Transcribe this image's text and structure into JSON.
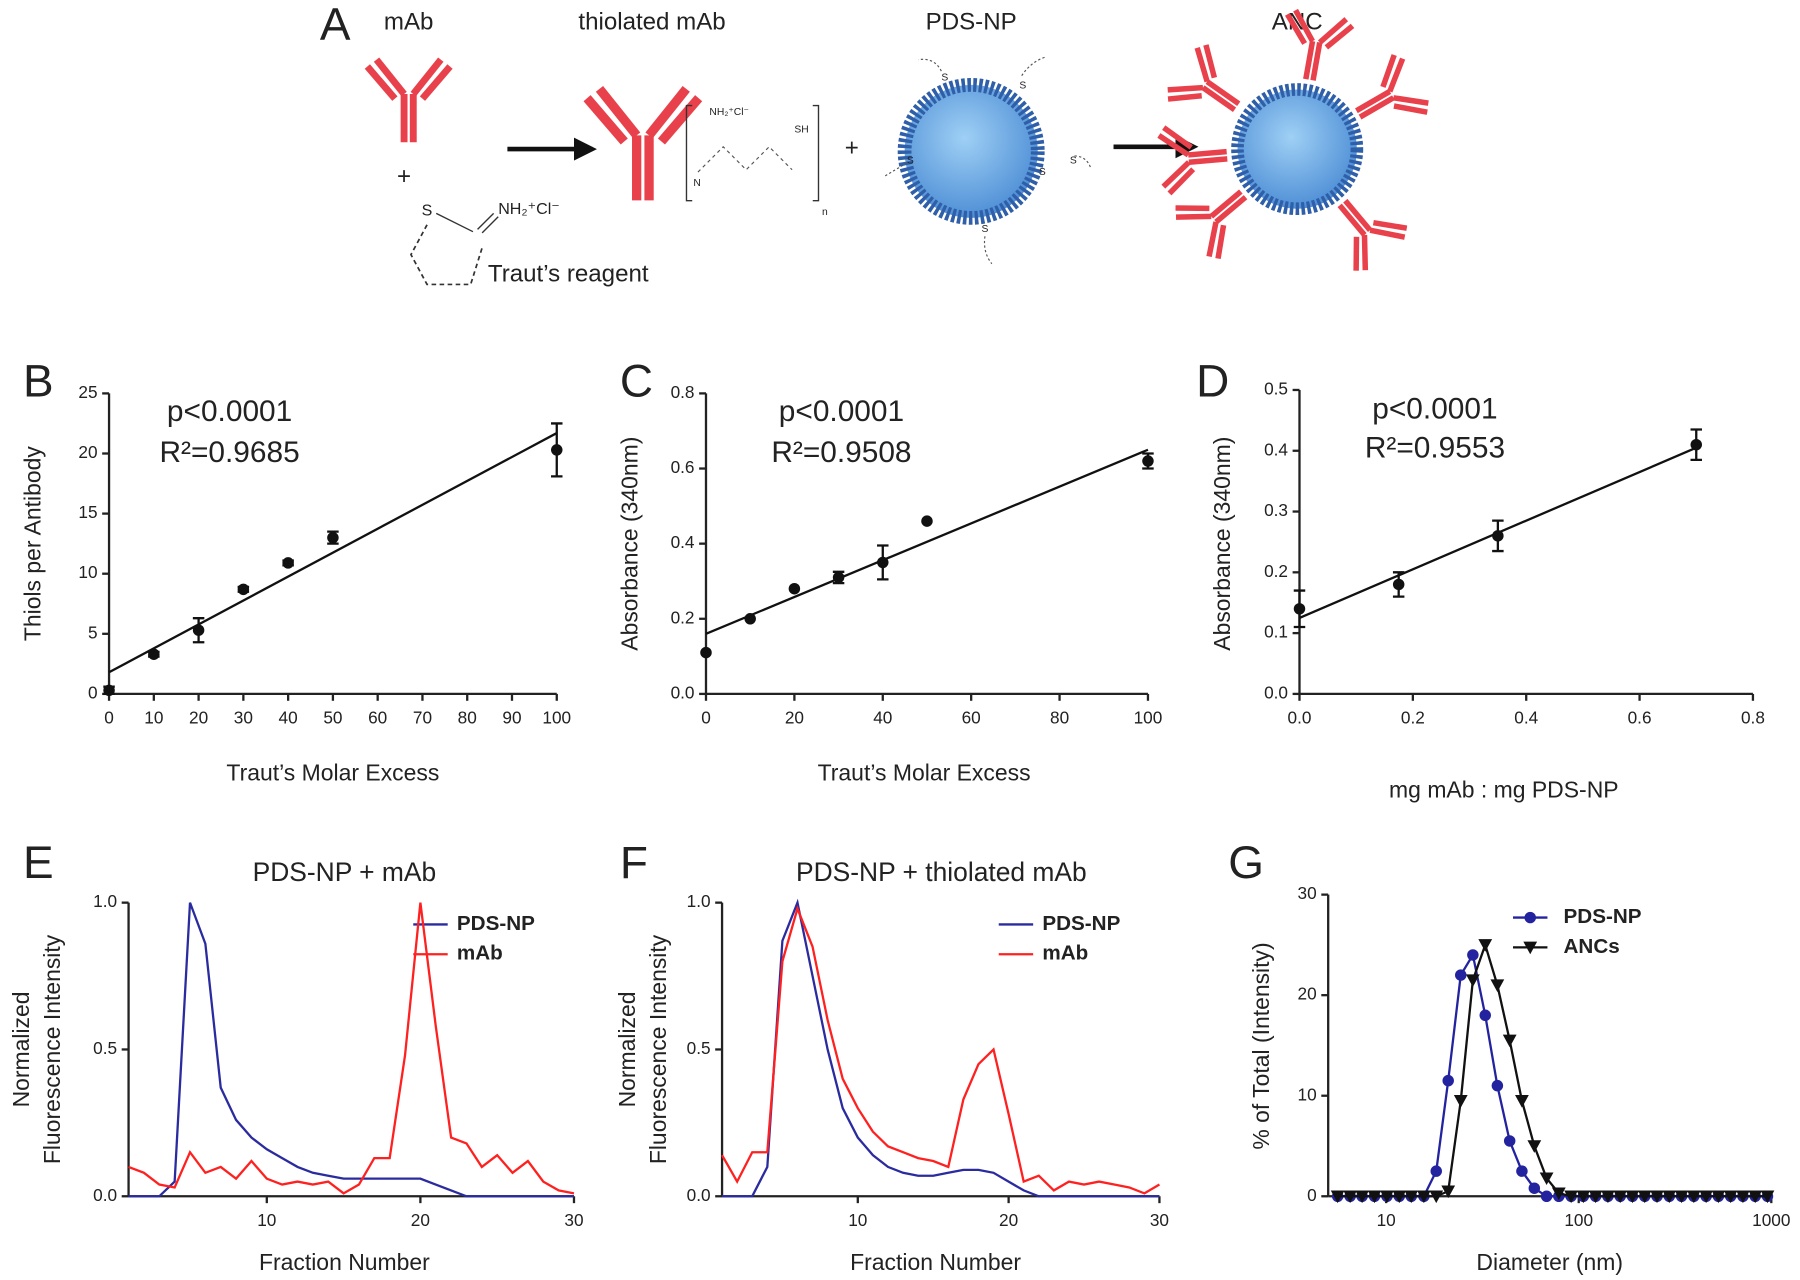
{
  "scheme": {
    "label": "A",
    "mab": "mAb",
    "thiolated_mab": "thiolated mAb",
    "pds_np": "PDS-NP",
    "anc": "ANC",
    "plus": "+",
    "reagent": "Traut’s reagent",
    "sulfur": "S",
    "iminium": "NH₂⁺Cl⁻",
    "thiol": "SH",
    "repeat": "n",
    "amine": "N"
  },
  "chart_data": [
    {
      "type": "scatter",
      "label": "B",
      "annotations": [
        "p<0.0001",
        "R²=0.9685"
      ],
      "xlabel": "Traut’s Molar Excess",
      "ylabel": "Thiols per Antibody",
      "x": [
        0,
        10,
        20,
        30,
        40,
        50,
        100
      ],
      "values": [
        0.3,
        3.3,
        5.3,
        8.7,
        10.9,
        13.0,
        20.3
      ],
      "errors": [
        0.3,
        0.2,
        1.0,
        0.2,
        0.2,
        0.5,
        2.2
      ],
      "fit": {
        "x": [
          0,
          100
        ],
        "values": [
          1.8,
          21.7
        ]
      },
      "color": "#111111",
      "xlim": [
        0,
        100
      ],
      "xticks": [
        0,
        10,
        20,
        30,
        40,
        50,
        60,
        70,
        80,
        90,
        100
      ],
      "ylim": [
        0,
        25
      ],
      "yticks": [
        0,
        5,
        10,
        15,
        20,
        25
      ]
    },
    {
      "type": "scatter",
      "label": "C",
      "annotations": [
        "p<0.0001",
        "R²=0.9508"
      ],
      "xlabel": "Traut’s Molar Excess",
      "ylabel": "Absorbance (340nm)",
      "x": [
        0,
        10,
        20,
        30,
        40,
        50,
        100
      ],
      "values": [
        0.11,
        0.2,
        0.28,
        0.31,
        0.35,
        0.46,
        0.62
      ],
      "errors": [
        0,
        0,
        0,
        0.015,
        0.045,
        0,
        0.02
      ],
      "fit": {
        "x": [
          0,
          100
        ],
        "values": [
          0.16,
          0.65
        ]
      },
      "color": "#111111",
      "xlim": [
        0,
        100
      ],
      "xticks": [
        0,
        20,
        40,
        60,
        80,
        100
      ],
      "ylim": [
        0,
        0.8
      ],
      "yticks": [
        {
          "value": 0,
          "label": "0.0"
        },
        0.2,
        0.4,
        0.6,
        0.8
      ]
    },
    {
      "type": "scatter",
      "label": "D",
      "annotations": [
        "p<0.0001",
        "R²=0.9553"
      ],
      "xlabel": "mg mAb : mg PDS-NP",
      "ylabel": "Absorbance (340nm)",
      "x": [
        0,
        0.175,
        0.35,
        0.7
      ],
      "values": [
        0.14,
        0.18,
        0.26,
        0.41
      ],
      "errors": [
        0.03,
        0.02,
        0.025,
        0.025
      ],
      "fit": {
        "x": [
          0,
          0.7
        ],
        "values": [
          0.125,
          0.405
        ]
      },
      "color": "#111111",
      "xlim": [
        0,
        0.8
      ],
      "xticks": [
        {
          "value": 0,
          "label": "0.0"
        },
        0.2,
        0.4,
        0.6,
        0.8
      ],
      "ylim": [
        0,
        0.5
      ],
      "yticks": [
        {
          "value": 0,
          "label": "0.0"
        },
        0.1,
        0.2,
        0.3,
        0.4,
        0.5
      ]
    },
    {
      "type": "line",
      "label": "E",
      "title": "PDS-NP + mAb",
      "xlabel": "Fraction Number",
      "ylabel": [
        "Normalized",
        "Fluorescence Intensity"
      ],
      "x": [
        1,
        2,
        3,
        4,
        5,
        6,
        7,
        8,
        9,
        10,
        11,
        12,
        13,
        14,
        15,
        16,
        17,
        18,
        19,
        20,
        21,
        22,
        23,
        24,
        25,
        26,
        27,
        28,
        29,
        30
      ],
      "series": [
        {
          "name": "PDS-NP",
          "color": "#2b2ba0",
          "values": [
            0,
            0,
            0,
            0.05,
            1.0,
            0.86,
            0.37,
            0.26,
            0.2,
            0.16,
            0.13,
            0.1,
            0.08,
            0.07,
            0.06,
            0.06,
            0.06,
            0.06,
            0.06,
            0.06,
            0.04,
            0.02,
            0,
            0,
            0,
            0,
            0,
            0,
            0,
            0
          ]
        },
        {
          "name": "mAb",
          "color": "#ff2020",
          "values": [
            0.1,
            0.08,
            0.04,
            0.03,
            0.15,
            0.08,
            0.1,
            0.06,
            0.12,
            0.06,
            0.04,
            0.05,
            0.04,
            0.05,
            0.01,
            0.04,
            0.13,
            0.13,
            0.48,
            1.0,
            0.58,
            0.2,
            0.18,
            0.1,
            0.14,
            0.08,
            0.12,
            0.05,
            0.02,
            0.01
          ]
        }
      ],
      "xlim": [
        1,
        30
      ],
      "xticks": [
        10,
        20,
        30
      ],
      "ylim": [
        0,
        1
      ],
      "yticks": [
        {
          "value": 0,
          "label": "0.0"
        },
        0.5,
        {
          "value": 1,
          "label": "1.0"
        }
      ]
    },
    {
      "type": "line",
      "label": "F",
      "title": "PDS-NP + thiolated mAb",
      "xlabel": "Fraction Number",
      "ylabel": [
        "Normalized",
        "Fluorescence Intensity"
      ],
      "x": [
        1,
        2,
        3,
        4,
        5,
        6,
        7,
        8,
        9,
        10,
        11,
        12,
        13,
        14,
        15,
        16,
        17,
        18,
        19,
        20,
        21,
        22,
        23,
        24,
        25,
        26,
        27,
        28,
        29,
        30
      ],
      "series": [
        {
          "name": "PDS-NP",
          "color": "#2b2ba0",
          "values": [
            0,
            0,
            0,
            0.1,
            0.87,
            1.0,
            0.75,
            0.5,
            0.3,
            0.2,
            0.14,
            0.1,
            0.08,
            0.07,
            0.07,
            0.08,
            0.09,
            0.09,
            0.08,
            0.05,
            0.02,
            0,
            0,
            0,
            0,
            0,
            0,
            0,
            0,
            0
          ]
        },
        {
          "name": "mAb",
          "color": "#ff2020",
          "values": [
            0.14,
            0.05,
            0.15,
            0.15,
            0.8,
            0.98,
            0.85,
            0.6,
            0.4,
            0.3,
            0.22,
            0.17,
            0.15,
            0.13,
            0.12,
            0.1,
            0.33,
            0.45,
            0.5,
            0.28,
            0.05,
            0.07,
            0.02,
            0.05,
            0.04,
            0.05,
            0.04,
            0.03,
            0.01,
            0.04
          ]
        }
      ],
      "xlim": [
        1,
        30
      ],
      "xticks": [
        10,
        20,
        30
      ],
      "ylim": [
        0,
        1
      ],
      "yticks": [
        {
          "value": 0,
          "label": "0.0"
        },
        0.5,
        {
          "value": 1,
          "label": "1.0"
        }
      ]
    },
    {
      "type": "line",
      "label": "G",
      "xscale": "log",
      "xlabel": "Diameter (nm)",
      "ylabel": "% of Total (Intensity)",
      "x": [
        5.6,
        6.5,
        7.5,
        8.7,
        10.1,
        11.7,
        13.5,
        15.7,
        18.2,
        21.0,
        24.4,
        28.2,
        32.7,
        37.8,
        43.8,
        50.7,
        58.8,
        68.1,
        78.8,
        91.3,
        105.7,
        122.4,
        141.8,
        164.2,
        190.1,
        220.2,
        255.0,
        295.3,
        342.0,
        396.1,
        458.7,
        531.2,
        615.1,
        712.4,
        825.0,
        955.4
      ],
      "series": [
        {
          "name": "PDS-NP",
          "color": "#2323a0",
          "marker": "circle",
          "values": [
            0,
            0,
            0,
            0,
            0,
            0,
            0,
            0,
            2.5,
            11.5,
            22,
            24,
            18,
            11,
            5.5,
            2.5,
            0.8,
            0,
            0,
            0,
            0,
            0,
            0,
            0,
            0,
            0,
            0,
            0,
            0,
            0,
            0,
            0,
            0,
            0,
            0,
            0
          ]
        },
        {
          "name": "ANCs",
          "color": "#111111",
          "marker": "triangle",
          "values": [
            0,
            0,
            0,
            0,
            0,
            0,
            0,
            0,
            0,
            0.5,
            9.5,
            21.5,
            25,
            21,
            15.5,
            9.5,
            5,
            1.8,
            0.3,
            0,
            0,
            0,
            0,
            0,
            0,
            0,
            0,
            0,
            0,
            0,
            0,
            0,
            0,
            0,
            0,
            0
          ]
        }
      ],
      "xlim": [
        5,
        1000
      ],
      "xticks": [
        10,
        100,
        1000
      ],
      "ylim": [
        0,
        30
      ],
      "yticks": [
        0,
        10,
        20,
        30
      ]
    }
  ]
}
